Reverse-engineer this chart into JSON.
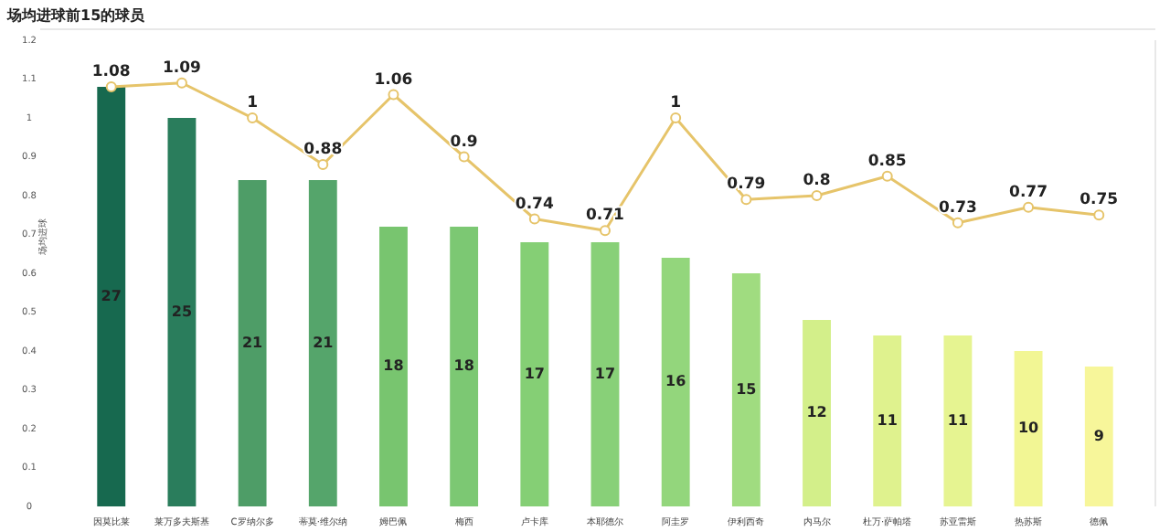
{
  "chart_data": {
    "type": "bar",
    "title": "场均进球前15的球员",
    "ylabel": "场均进球",
    "categories": [
      "因莫比莱",
      "莱万多夫斯基",
      "C罗纳尔多",
      "蒂莫·维尔纳",
      "姆巴佩",
      "梅西",
      "卢卡库",
      "本耶德尔",
      "阿圭罗",
      "伊利西奇",
      "内马尔",
      "杜万·萨帕塔",
      "苏亚雷斯",
      "热苏斯",
      "德佩"
    ],
    "ylim": [
      0,
      1.2
    ],
    "yticks": [
      0,
      0.1,
      0.2,
      0.3,
      0.4,
      0.5,
      0.6,
      0.7,
      0.8,
      0.9,
      1,
      1.1,
      1.2
    ],
    "y2lim": [
      0,
      30
    ],
    "tick_labels": "xy",
    "data_labels": true,
    "grid": false,
    "series": [
      {
        "axis": "y2",
        "colors": [
          "#17694f",
          "#2a7d5c",
          "#4e9d67",
          "#55a56b",
          "#78c56f",
          "#7cc873",
          "#85cf75",
          "#88d078",
          "#93d67c",
          "#a0dc80",
          "#d3ef8a",
          "#dff28e",
          "#e6f491",
          "#f2f694",
          "#f7f69a"
        ],
        "values": [
          27,
          25,
          21,
          21,
          18,
          18,
          17,
          17,
          16,
          15,
          12,
          11,
          11,
          10,
          9
        ]
      },
      {
        "type": "line",
        "color": "#e6c46a",
        "marker": "circle",
        "values": [
          1.08,
          1.09,
          1,
          0.88,
          1.06,
          0.9,
          0.74,
          0.71,
          1,
          0.79,
          0.8,
          0.85,
          0.73,
          0.77,
          0.75
        ]
      }
    ]
  }
}
